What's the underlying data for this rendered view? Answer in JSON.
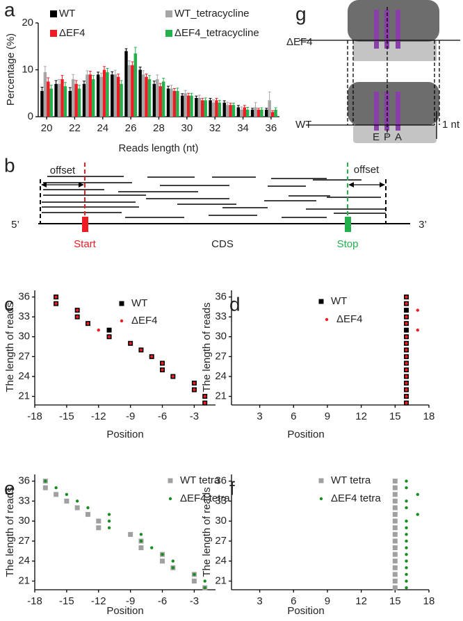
{
  "chart_data": [
    {
      "type": "bar",
      "panel_label": "a",
      "ylabel": "Percentage (%)",
      "xlabel": "Reads length (nt)",
      "x": [
        20,
        21,
        22,
        23,
        24,
        25,
        26,
        27,
        28,
        29,
        30,
        31,
        32,
        33,
        34,
        35,
        36
      ],
      "xlim": [
        19.4,
        36.6
      ],
      "xticks": [
        20,
        22,
        24,
        26,
        28,
        30,
        32,
        34,
        36
      ],
      "ylim": [
        0,
        20
      ],
      "yticks": [
        0,
        10,
        20
      ],
      "series": [
        {
          "name": "WT",
          "color": "#000000",
          "values": [
            5.5,
            7,
            5.5,
            7,
            9,
            9,
            14,
            10,
            7,
            6,
            4.5,
            4,
            3.5,
            3,
            2,
            1.5,
            1.5
          ],
          "errors": [
            0.8,
            0.7,
            0.7,
            0.6,
            0.5,
            0.6,
            0.5,
            0.6,
            0.6,
            0.5,
            0.4,
            0.4,
            0.4,
            0.4,
            0.4,
            0.3,
            0.3
          ]
        },
        {
          "name": "WT_tetracycline",
          "color": "#a6a6a6",
          "values": [
            9.5,
            7,
            8,
            9,
            8.5,
            9,
            11,
            9,
            8,
            6,
            5,
            4,
            3,
            2.5,
            1.5,
            2,
            3.5
          ],
          "errors": [
            1.2,
            0.9,
            1,
            0.8,
            0.8,
            0.9,
            0.9,
            0.8,
            0.9,
            0.7,
            0.6,
            0.6,
            0.6,
            0.6,
            0.6,
            1,
            1.8
          ]
        },
        {
          "name": "ΔEF4",
          "color": "#ee1c24",
          "values": [
            7.5,
            8,
            7,
            9,
            10,
            8.5,
            11,
            8.5,
            6.5,
            5.5,
            4.5,
            3.5,
            3.5,
            2.5,
            2,
            1.5,
            1
          ],
          "errors": [
            0.8,
            0.8,
            0.7,
            0.7,
            0.7,
            0.6,
            0.7,
            0.6,
            0.6,
            0.5,
            0.5,
            0.4,
            0.4,
            0.4,
            0.4,
            0.3,
            0.3
          ]
        },
        {
          "name": "ΔEF4_tetracycline",
          "color": "#22b14c",
          "values": [
            6,
            6.5,
            6,
            8,
            9.5,
            7,
            13.5,
            8,
            7.5,
            5.5,
            4.5,
            3.5,
            3,
            2.5,
            1.5,
            1.5,
            1.5
          ],
          "errors": [
            0.7,
            0.8,
            0.7,
            0.8,
            0.8,
            0.7,
            1.3,
            0.8,
            0.7,
            0.6,
            0.5,
            0.5,
            0.5,
            0.4,
            0.5,
            0.4,
            0.4
          ]
        }
      ]
    },
    {
      "type": "scatter",
      "panel_label": "c",
      "ylabel": "The length of reads",
      "xlabel": "Position",
      "xlim": [
        -18,
        -1
      ],
      "xticks": [
        -18,
        -15,
        -12,
        -9,
        -6,
        -3
      ],
      "ylim": [
        19.7,
        37
      ],
      "yticks": [
        21,
        24,
        27,
        30,
        33,
        36
      ],
      "series": [
        {
          "name": "WT",
          "color": "#000000",
          "marker": "square",
          "x": [
            -16,
            -16,
            -14,
            -14,
            -13,
            -11,
            -11,
            -9,
            -8,
            -7,
            -6,
            -6,
            -5,
            -3,
            -3,
            -2,
            -2
          ],
          "y": [
            36,
            35,
            34,
            33,
            32,
            31,
            30,
            29,
            28,
            27,
            26,
            25,
            24,
            23,
            22,
            21,
            20
          ]
        },
        {
          "name": "ΔEF4",
          "color": "#ee1c24",
          "marker": "dot",
          "x": [
            -16,
            -16,
            -14,
            -14,
            -13,
            -12,
            -11,
            -9,
            -8,
            -7,
            -6,
            -6,
            -5,
            -3,
            -3,
            -2,
            -2
          ],
          "y": [
            36,
            35,
            34,
            33,
            32,
            31,
            30,
            29,
            28,
            27,
            26,
            25,
            24,
            23,
            22,
            21,
            20
          ]
        }
      ]
    },
    {
      "type": "scatter",
      "panel_label": "d",
      "ylabel": "The length of reads",
      "xlabel": "Position",
      "xlim": [
        0.5,
        18
      ],
      "xticks": [
        3,
        6,
        9,
        12,
        15,
        18
      ],
      "ylim": [
        19.7,
        37
      ],
      "yticks": [
        21,
        24,
        27,
        30,
        33,
        36
      ],
      "series": [
        {
          "name": "WT",
          "color": "#000000",
          "marker": "square",
          "x": [
            16,
            16,
            16,
            16,
            16,
            16,
            16,
            16,
            16,
            16,
            16,
            16,
            16,
            16,
            16,
            16,
            16
          ],
          "y": [
            36,
            35,
            34,
            33,
            32,
            31,
            30,
            29,
            28,
            27,
            26,
            25,
            24,
            23,
            22,
            21,
            20
          ]
        },
        {
          "name": "ΔEF4",
          "color": "#ee1c24",
          "marker": "dot",
          "x": [
            16,
            16,
            17,
            16,
            16,
            17,
            16,
            16,
            16,
            16,
            16,
            16,
            16,
            16,
            16,
            16,
            16
          ],
          "y": [
            36,
            35,
            34,
            33,
            32,
            31,
            30,
            29,
            28,
            27,
            26,
            25,
            24,
            23,
            22,
            21,
            20
          ]
        }
      ]
    },
    {
      "type": "scatter",
      "panel_label": "e",
      "ylabel": "The length of reads",
      "xlabel": "Position",
      "xlim": [
        -18,
        -1
      ],
      "xticks": [
        -18,
        -15,
        -12,
        -9,
        -6,
        -3
      ],
      "ylim": [
        19.7,
        37
      ],
      "yticks": [
        21,
        24,
        27,
        30,
        33,
        36
      ],
      "series": [
        {
          "name": "WT tetra",
          "color": "#a0a0a0",
          "marker": "square",
          "x": [
            -17,
            -17,
            -16,
            -15,
            -14,
            -13,
            -12,
            -12,
            -9,
            -8,
            -8,
            -6,
            -6,
            -5,
            -3,
            -3,
            -2
          ],
          "y": [
            36,
            35,
            34,
            33,
            32,
            31,
            30,
            29,
            28,
            27,
            26,
            25,
            24,
            23,
            22,
            21,
            20
          ]
        },
        {
          "name": "ΔEF4 tetra",
          "color": "#1a8c22",
          "marker": "dot",
          "x": [
            -17,
            -16,
            -15,
            -14,
            -13,
            -11,
            -11,
            -11,
            -8,
            -8,
            -7,
            -6,
            -5,
            -5,
            -3,
            -2,
            -2
          ],
          "y": [
            36,
            35,
            34,
            33,
            32,
            31,
            30,
            29,
            28,
            27,
            26,
            25,
            24,
            23,
            22,
            21,
            20
          ]
        }
      ]
    },
    {
      "type": "scatter",
      "panel_label": "f",
      "ylabel": "The length of reads",
      "xlabel": "Position",
      "xlim": [
        0.5,
        18
      ],
      "xticks": [
        3,
        6,
        9,
        12,
        15,
        18
      ],
      "ylim": [
        19.7,
        37
      ],
      "yticks": [
        21,
        24,
        27,
        30,
        33,
        36
      ],
      "series": [
        {
          "name": "WT tetra",
          "color": "#a0a0a0",
          "marker": "square",
          "x": [
            15,
            15,
            15,
            15,
            15,
            15,
            15,
            15,
            15,
            15,
            15,
            15,
            15,
            15,
            15,
            15,
            15
          ],
          "y": [
            36,
            35,
            34,
            33,
            32,
            31,
            30,
            29,
            28,
            27,
            26,
            25,
            24,
            23,
            22,
            21,
            20
          ]
        },
        {
          "name": "ΔEF4 tetra",
          "color": "#1a8c22",
          "marker": "dot",
          "x": [
            16,
            16,
            17,
            16,
            16,
            17,
            16,
            16,
            16,
            16,
            16,
            16,
            16,
            16,
            16,
            16,
            16
          ],
          "y": [
            36,
            35,
            34,
            33,
            32,
            31,
            30,
            29,
            28,
            27,
            26,
            25,
            24,
            23,
            22,
            21,
            20
          ]
        }
      ]
    }
  ],
  "diagram_b": {
    "label": "b",
    "offset_left": "offset",
    "offset_right": "offset",
    "five_prime": "5’",
    "three_prime": "3’",
    "start": "Start",
    "cds": "CDS",
    "stop": "Stop"
  },
  "diagram_g": {
    "label": "g",
    "mutant": "ΔEF4",
    "wild_type": "WT",
    "shift": "1 nt",
    "sites": [
      "E",
      "P",
      "A"
    ]
  }
}
